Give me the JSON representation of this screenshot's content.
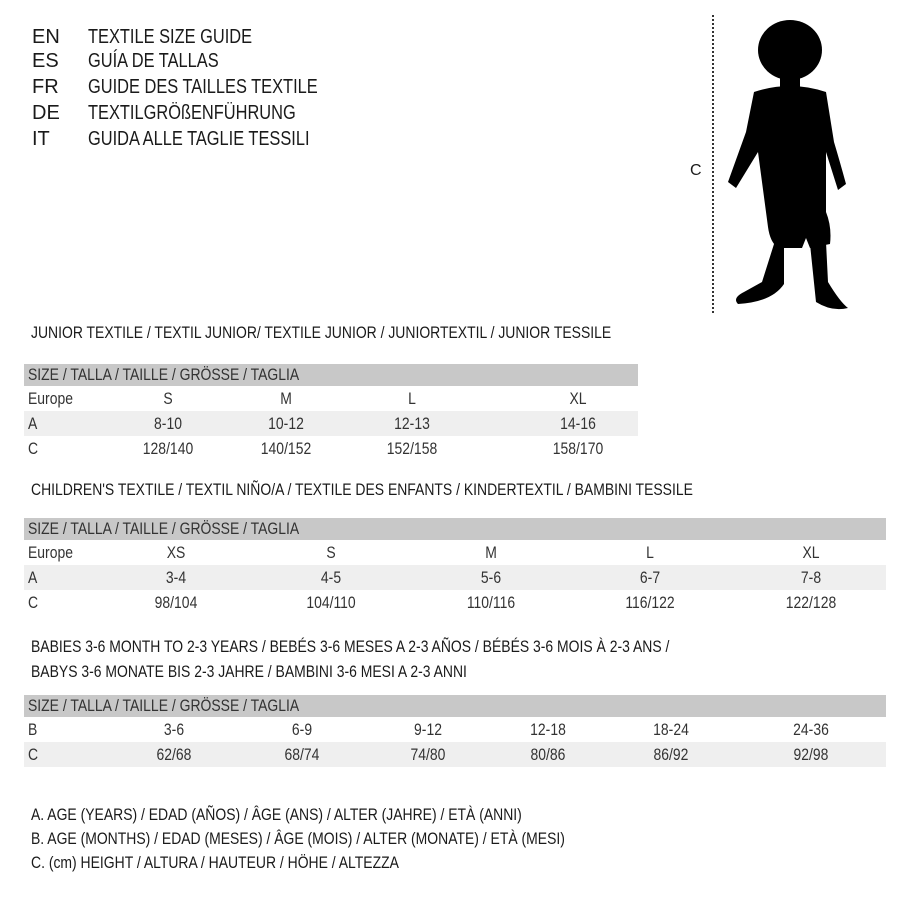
{
  "languages": [
    {
      "code": "EN",
      "title": "TEXTILE SIZE GUIDE"
    },
    {
      "code": "ES",
      "title": "GUÍA DE TALLAS"
    },
    {
      "code": "FR",
      "title": "GUIDE DES TAILLES TEXTILE"
    },
    {
      "code": "DE",
      "title": "TEXTILGRÖßENFÜHRUNG"
    },
    {
      "code": "IT",
      "title": "GUIDA ALLE TAGLIE TESSILI"
    }
  ],
  "figure": {
    "measure_label": "C",
    "icon": "child-silhouette"
  },
  "tables": [
    {
      "title": "JUNIOR TEXTILE / TEXTIL JUNIOR/ TEXTILE JUNIOR / JUNIORTEXTIL / JUNIOR TESSILE",
      "header": "SIZE / TALLA / TAILLE / GRÖSSE / TAGLIA",
      "rows": [
        {
          "label": "Europe",
          "cells": [
            "S",
            "M",
            "L",
            "XL"
          ]
        },
        {
          "label": "A",
          "cells": [
            "8-10",
            "10-12",
            "12-13",
            "14-16"
          ]
        },
        {
          "label": "C",
          "cells": [
            "128/140",
            "140/152",
            "152/158",
            "158/170"
          ]
        }
      ]
    },
    {
      "title": "CHILDREN'S TEXTILE / TEXTIL NIÑO/A / TEXTILE DES ENFANTS / KINDERTEXTIL / BAMBINI TESSILE",
      "header": "SIZE / TALLA / TAILLE / GRÖSSE / TAGLIA",
      "rows": [
        {
          "label": "Europe",
          "cells": [
            "XS",
            "S",
            "M",
            "L",
            "XL"
          ]
        },
        {
          "label": "A",
          "cells": [
            "3-4",
            "4-5",
            "5-6",
            "6-7",
            "7-8"
          ]
        },
        {
          "label": "C",
          "cells": [
            "98/104",
            "104/110",
            "110/116",
            "116/122",
            "122/128"
          ]
        }
      ]
    },
    {
      "title": "BABIES 3-6 MONTH TO 2-3 YEARS / BEBÉS 3-6 MESES A 2-3 AÑOS / BÉBÉS 3-6 MOIS À 2-3 ANS /",
      "title2": "BABYS 3-6 MONATE BIS 2-3 JAHRE / BAMBINI 3-6 MESI A 2-3 ANNI",
      "header": "SIZE / TALLA / TAILLE / GRÖSSE / TAGLIA",
      "rows": [
        {
          "label": "B",
          "cells": [
            "3-6",
            "6-9",
            "9-12",
            "12-18",
            "18-24",
            "24-36"
          ]
        },
        {
          "label": "C",
          "cells": [
            "62/68",
            "68/74",
            "74/80",
            "80/86",
            "86/92",
            "92/98"
          ]
        }
      ]
    }
  ],
  "legend": [
    "A. AGE (YEARS) / EDAD (AÑOS) / ÂGE (ANS) / ALTER (JAHRE) / ETÀ (ANNI)",
    "B. AGE (MONTHS) / EDAD (MESES) / ÂGE (MOIS) / ALTER (MONATE) / ETÀ (MESI)",
    "C. (cm) HEIGHT / ALTURA / HAUTEUR / HÖHE / ALTEZZA"
  ]
}
